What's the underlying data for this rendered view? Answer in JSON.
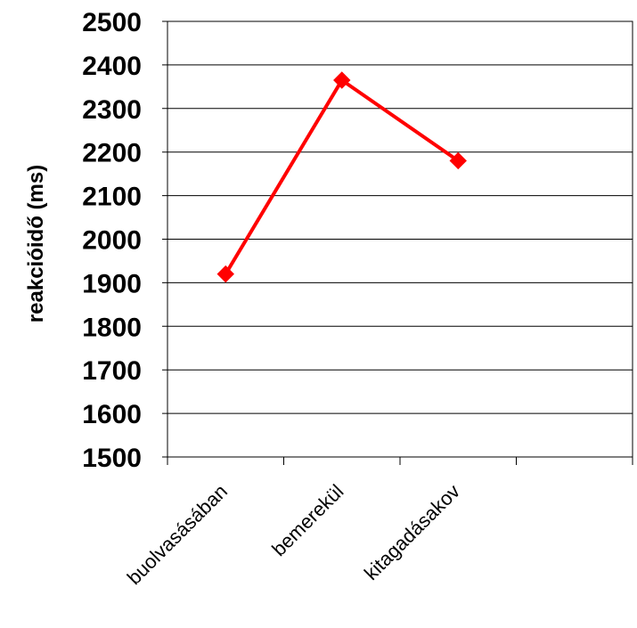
{
  "chart_data": {
    "type": "line",
    "categories": [
      "buolvasásában",
      "bemerekül",
      "kitagadásakov"
    ],
    "series": [
      {
        "values": [
          1920,
          2365,
          2180
        ],
        "color": "#ff0000",
        "marker": "diamond"
      }
    ],
    "xlabel": "",
    "ylabel": "reakcióidő (ms)",
    "ylim": [
      1500,
      2500
    ],
    "yticks": [
      1500,
      1600,
      1700,
      1800,
      1900,
      2000,
      2100,
      2200,
      2300,
      2400,
      2500
    ],
    "grid": "horizontal",
    "x_slots": 4,
    "legend": "none"
  }
}
